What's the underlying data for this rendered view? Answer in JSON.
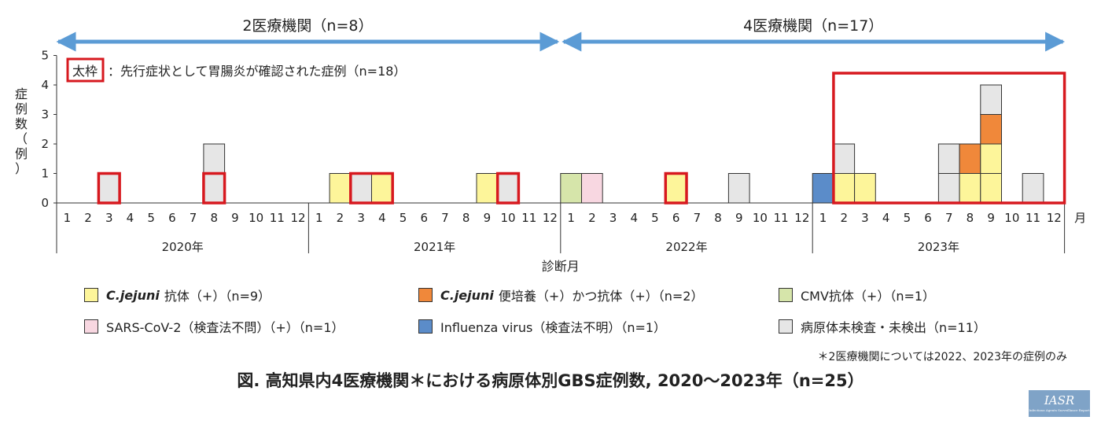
{
  "chart_data": {
    "type": "bar",
    "stacked": true,
    "ylabel_chars": [
      "症",
      "例",
      "数",
      "（",
      "例",
      "）"
    ],
    "xlabel": "診断月",
    "ylim": [
      0,
      5
    ],
    "y_ticks": [
      "0",
      "1",
      "2",
      "3",
      "4",
      "5"
    ],
    "month_unit": "月",
    "years": [
      "2020年",
      "2021年",
      "2022年",
      "2023年"
    ],
    "months": [
      "1",
      "2",
      "3",
      "4",
      "5",
      "6",
      "7",
      "8",
      "9",
      "10",
      "11",
      "12"
    ],
    "periods": [
      {
        "label": "2医療機関（n=8）",
        "from": "2020-01",
        "to": "2021-12"
      },
      {
        "label": "4医療機関（n=17）",
        "from": "2022-01",
        "to": "2023-12"
      }
    ],
    "box_note": {
      "key": "太枠",
      "text": "：先行症状として胃腸炎が確認された症例（n=18）"
    },
    "series": [
      {
        "key": "cj_ab",
        "name": "C.jejuni",
        "label_rest": "抗体（+）（n=9）",
        "color": "#fdf59a"
      },
      {
        "key": "cj_culture",
        "name": "C.jejuni",
        "label_rest": "便培養（+）かつ抗体（+）（n=2）",
        "color": "#f0883a"
      },
      {
        "key": "cmv",
        "name": "",
        "label_rest": "CMV抗体（+）（n=1）",
        "color": "#d6e5aa"
      },
      {
        "key": "sars",
        "name": "",
        "label_rest": "SARS-CoV-2（検査法不問）（+）（n=1）",
        "color": "#f8d7e1"
      },
      {
        "key": "flu",
        "name": "",
        "label_rest": "Influenza virus（検査法不明）（n=1）",
        "color": "#5b8cc9"
      },
      {
        "key": "none",
        "name": "",
        "label_rest": "病原体未検査・未検出（n=11）",
        "color": "#e6e6e6"
      }
    ],
    "cases": [
      {
        "year": 2020,
        "month": 3,
        "stack": [
          "none"
        ]
      },
      {
        "year": 2020,
        "month": 8,
        "stack": [
          "none",
          "none"
        ]
      },
      {
        "year": 2021,
        "month": 2,
        "stack": [
          "cj_ab"
        ]
      },
      {
        "year": 2021,
        "month": 3,
        "stack": [
          "none"
        ]
      },
      {
        "year": 2021,
        "month": 4,
        "stack": [
          "cj_ab"
        ]
      },
      {
        "year": 2021,
        "month": 9,
        "stack": [
          "cj_ab"
        ]
      },
      {
        "year": 2021,
        "month": 10,
        "stack": [
          "none"
        ]
      },
      {
        "year": 2022,
        "month": 1,
        "stack": [
          "cmv"
        ]
      },
      {
        "year": 2022,
        "month": 2,
        "stack": [
          "sars"
        ]
      },
      {
        "year": 2022,
        "month": 6,
        "stack": [
          "cj_ab"
        ]
      },
      {
        "year": 2022,
        "month": 9,
        "stack": [
          "none"
        ]
      },
      {
        "year": 2023,
        "month": 1,
        "stack": [
          "flu"
        ]
      },
      {
        "year": 2023,
        "month": 2,
        "stack": [
          "cj_ab",
          "none"
        ]
      },
      {
        "year": 2023,
        "month": 3,
        "stack": [
          "cj_ab"
        ]
      },
      {
        "year": 2023,
        "month": 7,
        "stack": [
          "none",
          "none"
        ]
      },
      {
        "year": 2023,
        "month": 8,
        "stack": [
          "cj_ab",
          "cj_culture"
        ]
      },
      {
        "year": 2023,
        "month": 9,
        "stack": [
          "cj_ab",
          "cj_ab",
          "cj_culture",
          "none"
        ]
      },
      {
        "year": 2023,
        "month": 11,
        "stack": [
          "none"
        ]
      }
    ],
    "red_boxes": [
      {
        "year": 2020,
        "from_month": 3,
        "to_month": 3,
        "height": 1
      },
      {
        "year": 2020,
        "from_month": 8,
        "to_month": 8,
        "height": 1
      },
      {
        "year": 2021,
        "from_month": 3,
        "to_month": 4,
        "height": 1
      },
      {
        "year": 2021,
        "from_month": 10,
        "to_month": 10,
        "height": 1
      },
      {
        "year": 2022,
        "from_month": 6,
        "to_month": 6,
        "height": 1
      },
      {
        "year": 2023,
        "from_month": 2,
        "to_month": 12,
        "height": 4.4
      }
    ],
    "highlight_color": "#d7191f",
    "arrow_color": "#5b9bd5"
  },
  "footnote": "＊2医療機関については2022、2023年の症例のみ",
  "caption": "図. 高知県内4医療機関＊における病原体別GBS症例数, 2020〜2023年（n=25）",
  "logo": {
    "main": "IASR",
    "sub": "Infectious Agents Surveillance Report"
  }
}
